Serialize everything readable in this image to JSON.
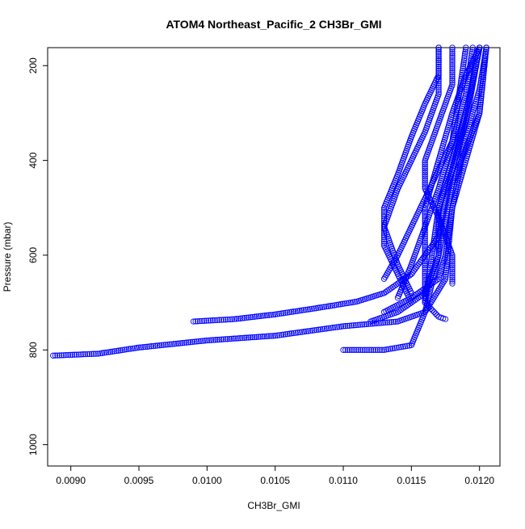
{
  "chart_data": {
    "type": "scatter",
    "title": "ATOM4 Northeast_Pacific_2 CH3Br_GMI",
    "xlabel": "CH3Br_GMI",
    "ylabel": "Pressure (mbar)",
    "xlim": [
      0.00883,
      0.01215
    ],
    "ylim": [
      1045,
      162
    ],
    "y_reversed": true,
    "x_ticks": [
      0.009,
      0.0095,
      0.01,
      0.0105,
      0.011,
      0.0115,
      0.012
    ],
    "x_tick_labels": [
      "0.0090",
      "0.0095",
      "0.0100",
      "0.0105",
      "0.0110",
      "0.0115",
      "0.0120"
    ],
    "y_ticks": [
      200,
      400,
      600,
      800,
      1000
    ],
    "y_tick_labels": [
      "200",
      "400",
      "600",
      "800",
      "1000"
    ],
    "grid": false,
    "legend": "none",
    "marker": "open-circle",
    "marker_color": "#0000ff",
    "series": [
      {
        "x": [
          0.00887,
          0.0092,
          0.0095,
          0.01,
          0.0105,
          0.011,
          0.0114,
          0.0116,
          0.01175,
          0.0118,
          0.0119,
          0.012,
          0.01205
        ],
        "y": [
          812,
          808,
          795,
          780,
          770,
          750,
          740,
          720,
          650,
          500,
          350,
          250,
          162
        ]
      },
      {
        "x": [
          0.0099,
          0.0102,
          0.0105,
          0.0108,
          0.0111,
          0.0113,
          0.0115,
          0.0117,
          0.0118,
          0.0119,
          0.012
        ],
        "y": [
          740,
          735,
          725,
          712,
          698,
          680,
          640,
          560,
          420,
          300,
          162
        ]
      },
      {
        "x": [
          0.011,
          0.0113,
          0.0115,
          0.0116,
          0.0117,
          0.0118,
          0.012,
          0.01205
        ],
        "y": [
          800,
          800,
          790,
          720,
          600,
          450,
          300,
          162
        ]
      },
      {
        "x": [
          0.01175,
          0.0117,
          0.0116,
          0.0116,
          0.0116,
          0.0117,
          0.0118,
          0.0119,
          0.012
        ],
        "y": [
          735,
          730,
          700,
          600,
          500,
          400,
          300,
          220,
          162
        ]
      },
      {
        "x": [
          0.0113,
          0.0115,
          0.0117,
          0.01175,
          0.0118,
          0.0119,
          0.012,
          0.01205
        ],
        "y": [
          720,
          690,
          650,
          600,
          500,
          400,
          300,
          162
        ]
      },
      {
        "x": [
          0.0112,
          0.0114,
          0.0116,
          0.0117,
          0.0117,
          0.0118,
          0.0119,
          0.012
        ],
        "y": [
          740,
          720,
          680,
          600,
          500,
          400,
          300,
          162
        ]
      },
      {
        "x": [
          0.0115,
          0.0114,
          0.0113,
          0.0113,
          0.0114,
          0.0115,
          0.0116,
          0.0117,
          0.0117
        ],
        "y": [
          700,
          640,
          580,
          500,
          430,
          350,
          280,
          220,
          162
        ]
      },
      {
        "x": [
          0.0115,
          0.0114,
          0.0113,
          0.0114,
          0.0115,
          0.0116,
          0.0117,
          0.0117
        ],
        "y": [
          680,
          620,
          540,
          460,
          400,
          340,
          260,
          162
        ]
      },
      {
        "x": [
          0.0113,
          0.0114,
          0.0115,
          0.0116,
          0.0117,
          0.0118,
          0.0119,
          0.01195
        ],
        "y": [
          650,
          600,
          540,
          480,
          420,
          360,
          260,
          162
        ]
      },
      {
        "x": [
          0.0118,
          0.0118,
          0.0117,
          0.0116,
          0.0116,
          0.0117,
          0.0118,
          0.0118
        ],
        "y": [
          660,
          600,
          520,
          460,
          400,
          320,
          240,
          162
        ]
      },
      {
        "x": [
          0.0114,
          0.0115,
          0.0116,
          0.0117,
          0.0118,
          0.0119
        ],
        "y": [
          690,
          620,
          540,
          460,
          360,
          162
        ]
      },
      {
        "x": [
          0.0116,
          0.01165,
          0.0117,
          0.0118,
          0.0119,
          0.012
        ],
        "y": [
          700,
          600,
          500,
          420,
          320,
          162
        ]
      }
    ]
  }
}
